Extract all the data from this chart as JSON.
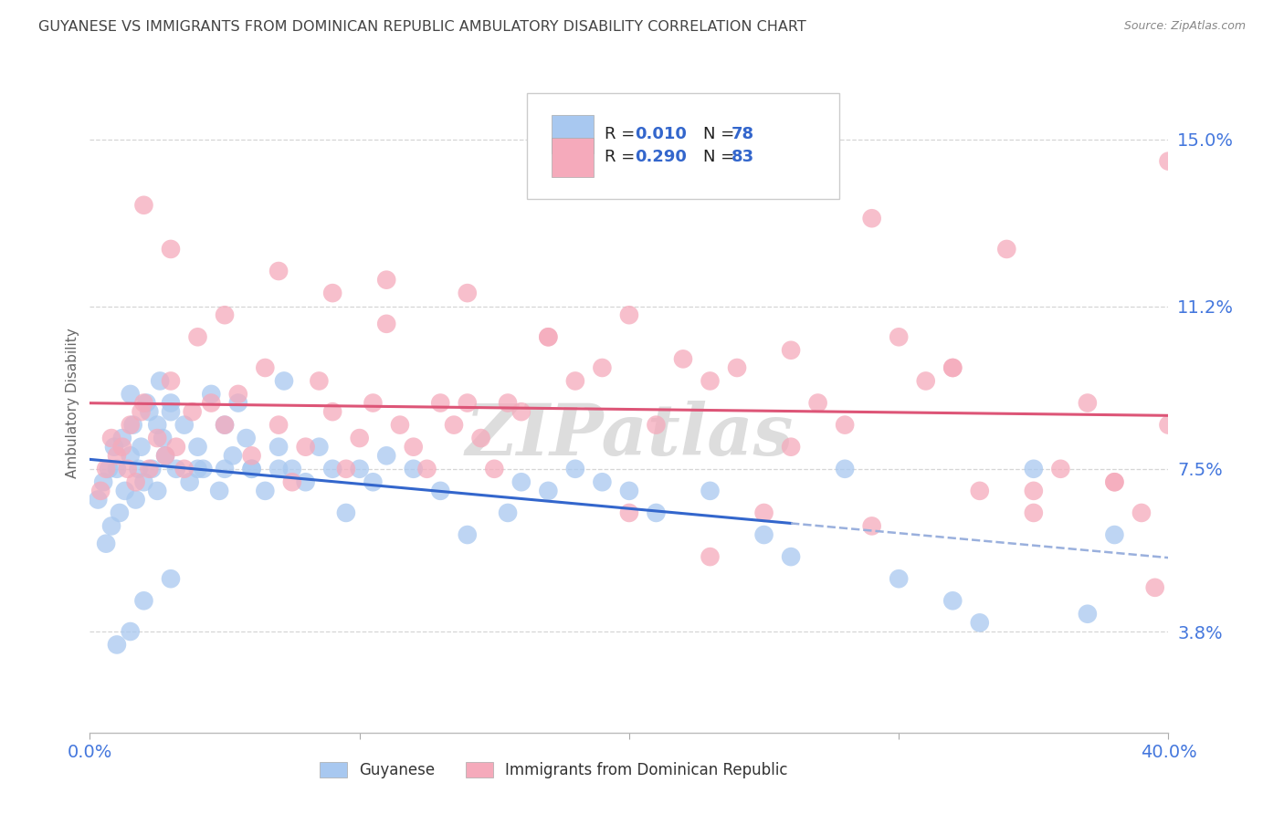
{
  "title": "GUYANESE VS IMMIGRANTS FROM DOMINICAN REPUBLIC AMBULATORY DISABILITY CORRELATION CHART",
  "source": "Source: ZipAtlas.com",
  "ylabel": "Ambulatory Disability",
  "ytick_values": [
    3.8,
    7.5,
    11.2,
    15.0
  ],
  "ytick_labels": [
    "3.8%",
    "7.5%",
    "11.2%",
    "15.0%"
  ],
  "xlim": [
    0.0,
    40.0
  ],
  "ylim": [
    1.5,
    16.5
  ],
  "blue_r": "0.010",
  "blue_n": "78",
  "pink_r": "0.290",
  "pink_n": "83",
  "blue_scatter_color": "#A8C8F0",
  "pink_scatter_color": "#F5AABB",
  "blue_line_color": "#3366CC",
  "pink_line_color": "#DD5577",
  "dashed_line_color": "#9AB0DD",
  "background_color": "#FFFFFF",
  "grid_color": "#CCCCCC",
  "title_color": "#444444",
  "axis_text_color": "#4477DD",
  "legend_label_color": "#222222",
  "legend_value_color": "#3366CC",
  "watermark": "ZIPatlas",
  "watermark_color": "#DDDDDD",
  "blue_x": [
    0.3,
    0.5,
    0.6,
    0.7,
    0.8,
    0.9,
    1.0,
    1.1,
    1.2,
    1.3,
    1.5,
    1.5,
    1.6,
    1.7,
    1.8,
    1.9,
    2.0,
    2.1,
    2.2,
    2.3,
    2.5,
    2.5,
    2.6,
    2.7,
    2.8,
    3.0,
    3.0,
    3.2,
    3.5,
    3.7,
    4.0,
    4.2,
    4.5,
    4.8,
    5.0,
    5.3,
    5.5,
    5.8,
    6.0,
    6.5,
    7.0,
    7.2,
    7.5,
    8.0,
    8.5,
    9.0,
    9.5,
    10.0,
    10.5,
    11.0,
    12.0,
    13.0,
    14.0,
    15.5,
    16.0,
    17.0,
    18.0,
    19.0,
    20.0,
    21.0,
    23.0,
    25.0,
    26.0,
    28.0,
    30.0,
    32.0,
    33.0,
    35.0,
    37.0,
    38.0,
    1.0,
    1.5,
    2.0,
    3.0,
    4.0,
    5.0,
    6.0,
    7.0
  ],
  "blue_y": [
    6.8,
    7.2,
    5.8,
    7.5,
    6.2,
    8.0,
    7.5,
    6.5,
    8.2,
    7.0,
    7.8,
    9.2,
    8.5,
    6.8,
    7.5,
    8.0,
    7.2,
    9.0,
    8.8,
    7.5,
    8.5,
    7.0,
    9.5,
    8.2,
    7.8,
    8.8,
    9.0,
    7.5,
    8.5,
    7.2,
    8.0,
    7.5,
    9.2,
    7.0,
    8.5,
    7.8,
    9.0,
    8.2,
    7.5,
    7.0,
    8.0,
    9.5,
    7.5,
    7.2,
    8.0,
    7.5,
    6.5,
    7.5,
    7.2,
    7.8,
    7.5,
    7.0,
    6.0,
    6.5,
    7.2,
    7.0,
    7.5,
    7.2,
    7.0,
    6.5,
    7.0,
    6.0,
    5.5,
    7.5,
    5.0,
    4.5,
    4.0,
    7.5,
    4.2,
    6.0,
    3.5,
    3.8,
    4.5,
    5.0,
    7.5,
    7.5,
    7.5,
    7.5
  ],
  "pink_x": [
    0.4,
    0.6,
    0.8,
    1.0,
    1.2,
    1.4,
    1.5,
    1.7,
    1.9,
    2.0,
    2.2,
    2.5,
    2.8,
    3.0,
    3.2,
    3.5,
    3.8,
    4.0,
    4.5,
    5.0,
    5.5,
    6.0,
    6.5,
    7.0,
    7.5,
    8.0,
    8.5,
    9.0,
    9.5,
    10.0,
    10.5,
    11.0,
    11.5,
    12.0,
    12.5,
    13.0,
    13.5,
    14.0,
    14.5,
    15.0,
    15.5,
    16.0,
    17.0,
    18.0,
    19.0,
    20.0,
    21.0,
    22.0,
    23.0,
    24.0,
    25.0,
    26.0,
    27.0,
    28.0,
    29.0,
    30.0,
    31.0,
    32.0,
    33.0,
    34.0,
    35.0,
    36.0,
    37.0,
    38.0,
    39.0,
    40.0,
    2.0,
    3.0,
    5.0,
    7.0,
    9.0,
    11.0,
    14.0,
    17.0,
    20.0,
    23.0,
    26.0,
    29.0,
    32.0,
    35.0,
    38.0,
    40.0,
    39.5
  ],
  "pink_y": [
    7.0,
    7.5,
    8.2,
    7.8,
    8.0,
    7.5,
    8.5,
    7.2,
    8.8,
    9.0,
    7.5,
    8.2,
    7.8,
    9.5,
    8.0,
    7.5,
    8.8,
    10.5,
    9.0,
    8.5,
    9.2,
    7.8,
    9.8,
    8.5,
    7.2,
    8.0,
    9.5,
    8.8,
    7.5,
    8.2,
    9.0,
    10.8,
    8.5,
    8.0,
    7.5,
    9.0,
    8.5,
    11.5,
    8.2,
    7.5,
    9.0,
    8.8,
    10.5,
    9.5,
    9.8,
    11.0,
    8.5,
    10.0,
    9.5,
    9.8,
    6.5,
    10.2,
    9.0,
    8.5,
    13.2,
    10.5,
    9.5,
    9.8,
    7.0,
    12.5,
    6.5,
    7.5,
    9.0,
    7.2,
    6.5,
    8.5,
    13.5,
    12.5,
    11.0,
    12.0,
    11.5,
    11.8,
    9.0,
    10.5,
    6.5,
    5.5,
    8.0,
    6.2,
    9.8,
    7.0,
    7.2,
    14.5,
    4.8
  ]
}
